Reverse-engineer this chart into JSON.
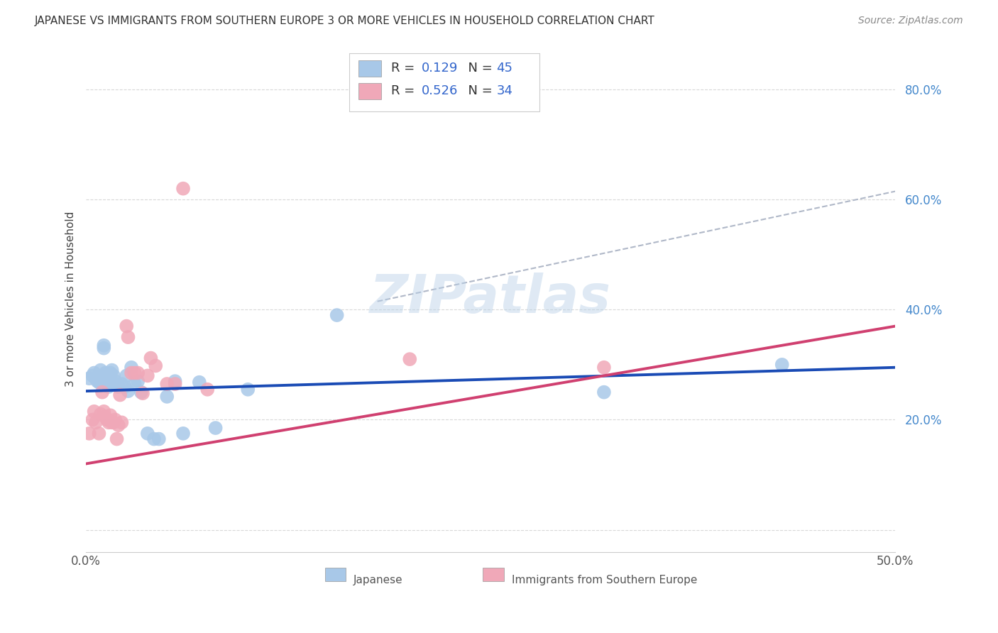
{
  "title": "JAPANESE VS IMMIGRANTS FROM SOUTHERN EUROPE 3 OR MORE VEHICLES IN HOUSEHOLD CORRELATION CHART",
  "source": "Source: ZipAtlas.com",
  "ylabel": "3 or more Vehicles in Household",
  "watermark": "ZIPatlas",
  "xlim": [
    0.0,
    0.5
  ],
  "ylim": [
    -0.04,
    0.88
  ],
  "yticks": [
    0.0,
    0.2,
    0.4,
    0.6,
    0.8
  ],
  "ytick_labels": [
    "",
    "20.0%",
    "40.0%",
    "60.0%",
    "80.0%"
  ],
  "japanese_color": "#a8c8e8",
  "southern_europe_color": "#f0a8b8",
  "japanese_line_color": "#1a4bb5",
  "southern_europe_line_color": "#d04070",
  "japanese_x": [
    0.002,
    0.004,
    0.005,
    0.006,
    0.007,
    0.008,
    0.008,
    0.009,
    0.01,
    0.01,
    0.011,
    0.011,
    0.012,
    0.012,
    0.013,
    0.013,
    0.014,
    0.014,
    0.015,
    0.015,
    0.016,
    0.017,
    0.018,
    0.019,
    0.02,
    0.022,
    0.024,
    0.025,
    0.026,
    0.028,
    0.03,
    0.032,
    0.034,
    0.038,
    0.042,
    0.045,
    0.05,
    0.055,
    0.06,
    0.07,
    0.08,
    0.1,
    0.155,
    0.32,
    0.43
  ],
  "japanese_y": [
    0.275,
    0.28,
    0.285,
    0.275,
    0.27,
    0.27,
    0.268,
    0.29,
    0.28,
    0.272,
    0.33,
    0.335,
    0.285,
    0.27,
    0.275,
    0.265,
    0.265,
    0.26,
    0.285,
    0.275,
    0.29,
    0.28,
    0.27,
    0.262,
    0.26,
    0.265,
    0.26,
    0.28,
    0.252,
    0.295,
    0.265,
    0.27,
    0.25,
    0.175,
    0.165,
    0.165,
    0.242,
    0.27,
    0.175,
    0.268,
    0.185,
    0.255,
    0.39,
    0.25,
    0.3
  ],
  "southern_europe_x": [
    0.002,
    0.004,
    0.005,
    0.006,
    0.008,
    0.009,
    0.01,
    0.011,
    0.012,
    0.013,
    0.014,
    0.015,
    0.016,
    0.017,
    0.018,
    0.019,
    0.02,
    0.021,
    0.022,
    0.025,
    0.026,
    0.028,
    0.03,
    0.032,
    0.035,
    0.038,
    0.04,
    0.043,
    0.05,
    0.055,
    0.06,
    0.075,
    0.2,
    0.32
  ],
  "southern_europe_y": [
    0.175,
    0.2,
    0.215,
    0.195,
    0.175,
    0.21,
    0.25,
    0.215,
    0.205,
    0.2,
    0.195,
    0.208,
    0.195,
    0.195,
    0.2,
    0.165,
    0.19,
    0.245,
    0.195,
    0.37,
    0.35,
    0.285,
    0.285,
    0.285,
    0.248,
    0.28,
    0.312,
    0.298,
    0.265,
    0.265,
    0.62,
    0.255,
    0.31,
    0.295
  ],
  "background_color": "#ffffff",
  "grid_color": "#d8d8d8",
  "jap_line_x0": 0.0,
  "jap_line_y0": 0.252,
  "jap_line_x1": 0.5,
  "jap_line_y1": 0.295,
  "seur_line_x0": 0.0,
  "seur_line_y0": 0.12,
  "seur_line_x1": 0.5,
  "seur_line_y1": 0.37,
  "dashed_line_x0": 0.18,
  "dashed_line_y0": 0.415,
  "dashed_line_x1": 0.5,
  "dashed_line_y1": 0.615
}
